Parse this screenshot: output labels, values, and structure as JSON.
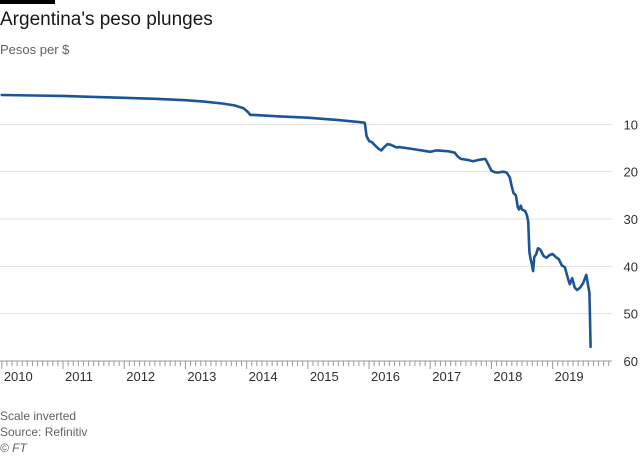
{
  "title": "Argentina's peso plunges",
  "subtitle": "Pesos per $",
  "footnotes": {
    "note": "Scale inverted",
    "source": "Source: Refinitiv",
    "credit": "© FT"
  },
  "colors": {
    "line": "#1c5597",
    "grid": "#e3dfdb",
    "axis": "#999999",
    "text": "#33302e",
    "rule": "#000000"
  },
  "chart_data": {
    "type": "line",
    "title": "Argentina's peso plunges",
    "ylabel": "Pesos per $",
    "xlabel": "",
    "y_inverted": true,
    "ylim": [
      0,
      60
    ],
    "xlim": [
      2009.97,
      2019.97
    ],
    "y_ticks": [
      10,
      20,
      30,
      40,
      50,
      60
    ],
    "x_ticks": [
      2010,
      2011,
      2012,
      2013,
      2014,
      2015,
      2016,
      2017,
      2018,
      2019
    ],
    "y_axis_position": "right",
    "grid": "horizontal",
    "series": [
      {
        "name": "",
        "x": [
          2010.0,
          2010.5,
          2011.0,
          2011.5,
          2012.0,
          2012.5,
          2013.0,
          2013.3,
          2013.6,
          2013.8,
          2013.95,
          2014.02,
          2014.06,
          2014.1,
          2014.5,
          2015.0,
          2015.5,
          2015.9,
          2015.93,
          2015.96,
          2016.0,
          2016.05,
          2016.1,
          2016.15,
          2016.2,
          2016.25,
          2016.3,
          2016.35,
          2016.4,
          2016.45,
          2016.5,
          2016.6,
          2016.7,
          2016.8,
          2016.9,
          2017.0,
          2017.1,
          2017.2,
          2017.3,
          2017.4,
          2017.45,
          2017.5,
          2017.6,
          2017.7,
          2017.8,
          2017.9,
          2017.95,
          2018.0,
          2018.05,
          2018.1,
          2018.15,
          2018.2,
          2018.25,
          2018.3,
          2018.33,
          2018.36,
          2018.4,
          2018.43,
          2018.45,
          2018.48,
          2018.5,
          2018.55,
          2018.58,
          2018.6,
          2018.62,
          2018.64,
          2018.66,
          2018.68,
          2018.7,
          2018.73,
          2018.76,
          2018.8,
          2018.85,
          2018.9,
          2018.95,
          2019.0,
          2019.05,
          2019.1,
          2019.15,
          2019.2,
          2019.25,
          2019.28,
          2019.32,
          2019.36,
          2019.4,
          2019.45,
          2019.5,
          2019.55,
          2019.58,
          2019.6,
          2019.61,
          2019.62
        ],
        "values": [
          3.8,
          3.9,
          4.0,
          4.2,
          4.4,
          4.6,
          4.9,
          5.2,
          5.6,
          6.0,
          6.6,
          7.4,
          8.0,
          8.0,
          8.3,
          8.6,
          9.1,
          9.6,
          9.7,
          12.5,
          13.5,
          13.8,
          14.5,
          15.1,
          15.5,
          14.8,
          14.2,
          14.3,
          14.6,
          14.9,
          14.8,
          15.0,
          15.2,
          15.4,
          15.6,
          15.8,
          15.5,
          15.6,
          15.7,
          16.0,
          16.8,
          17.3,
          17.5,
          17.8,
          17.5,
          17.3,
          18.5,
          19.8,
          20.1,
          20.2,
          20.1,
          20.0,
          20.2,
          21.2,
          23.0,
          24.5,
          25.0,
          27.5,
          28.0,
          27.2,
          28.0,
          28.3,
          29.2,
          30.5,
          37.0,
          38.5,
          39.5,
          41.0,
          38.0,
          37.5,
          36.2,
          36.5,
          37.8,
          38.2,
          37.6,
          37.4,
          38.0,
          38.5,
          39.8,
          40.2,
          42.5,
          43.8,
          42.5,
          44.5,
          45.0,
          44.5,
          43.5,
          41.8,
          44.0,
          45.5,
          51.0,
          57.0
        ]
      }
    ]
  }
}
